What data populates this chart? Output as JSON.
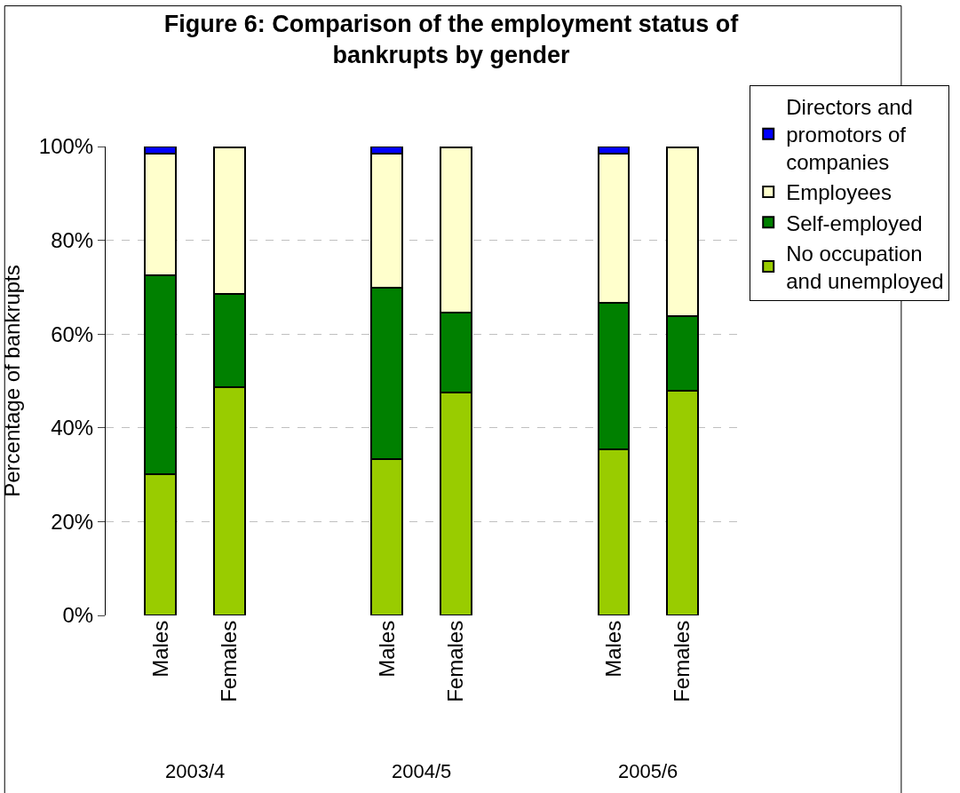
{
  "chart_data": {
    "type": "bar",
    "title": "Figure 6: Comparison of the employment status of bankrupts by gender",
    "ylabel": "Percentage of bankrupts",
    "categories": [
      "Males",
      "Females",
      "Males",
      "Females",
      "Males",
      "Females"
    ],
    "annotations": [
      "2003/4",
      "2004/5",
      "2005/6"
    ],
    "stacked": true,
    "series": [
      {
        "name": "No occupation and unemployed",
        "color": "#99cc00",
        "values": [
          30.1,
          48.6,
          33.4,
          47.5,
          35.4,
          48.0
        ]
      },
      {
        "name": "Self-employed",
        "color": "#008000",
        "values": [
          42.5,
          20.0,
          36.5,
          17.1,
          31.2,
          15.8
        ]
      },
      {
        "name": "Employees",
        "color": "#ffffcc",
        "values": [
          25.9,
          31.2,
          28.6,
          35.2,
          31.9,
          36.0
        ]
      },
      {
        "name": "Directors and promotors of companies",
        "color": "#0000ff",
        "values": [
          1.5,
          0.2,
          1.5,
          0.2,
          1.5,
          0.2
        ]
      }
    ],
    "ylim": [
      0,
      100
    ],
    "yticks": [
      {
        "value": 0,
        "label": "0%"
      },
      {
        "value": 20,
        "label": "20%"
      },
      {
        "value": 40,
        "label": "40%"
      },
      {
        "value": 60,
        "label": "60%"
      },
      {
        "value": 80,
        "label": "80%"
      },
      {
        "value": 100,
        "label": "100%"
      }
    ],
    "grid": "y",
    "legend": "right"
  }
}
